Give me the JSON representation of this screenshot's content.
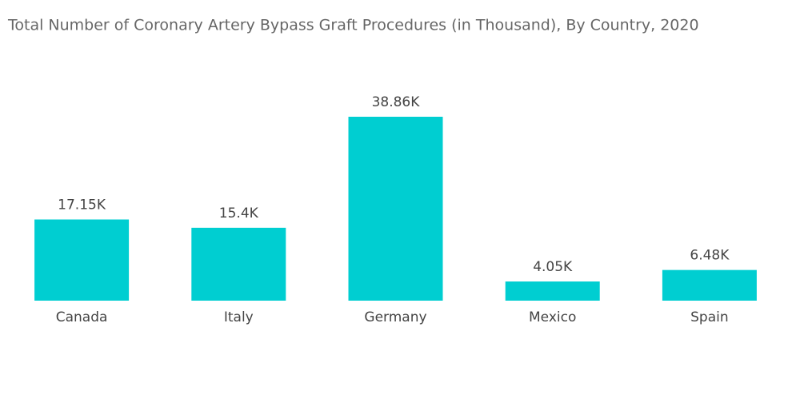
{
  "chart_data": {
    "type": "bar",
    "title": "Total Number of Coronary Artery Bypass Graft Procedures (in Thousand), By Country, 2020",
    "categories": [
      "Canada",
      "Italy",
      "Germany",
      "Mexico",
      "Spain"
    ],
    "values": [
      17.15,
      15.4,
      38.86,
      4.05,
      6.48
    ],
    "value_labels": [
      "17.15K",
      "15.4K",
      "38.86K",
      "4.05K",
      "6.48K"
    ],
    "color": "#00ced1"
  }
}
